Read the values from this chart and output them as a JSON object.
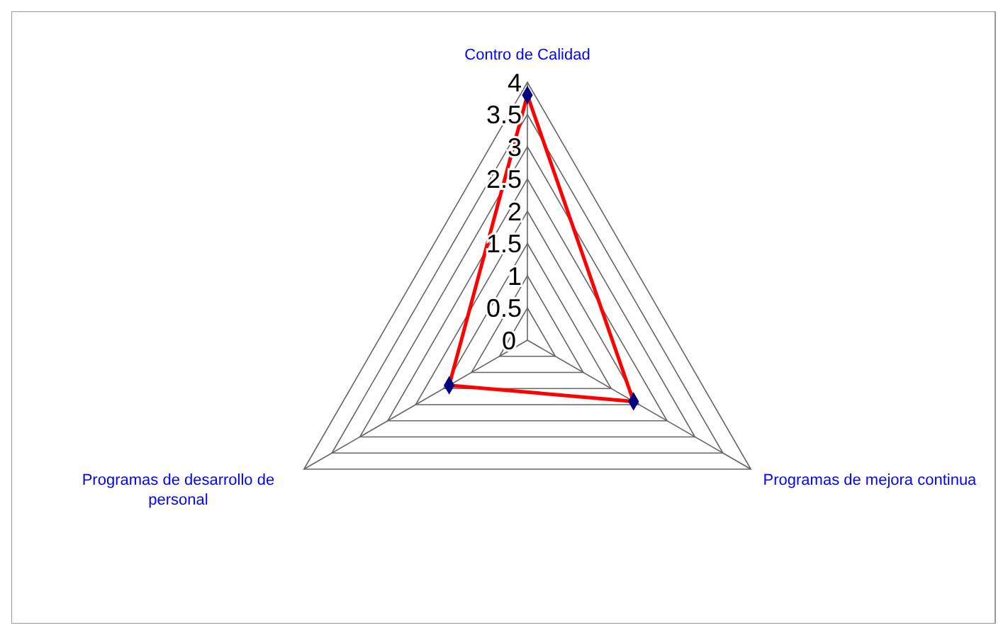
{
  "chart_data": {
    "type": "radar",
    "categories": [
      "Contro de Calidad",
      "Programas de mejora continua",
      "Programas de desarrollo de personal"
    ],
    "series": [
      {
        "color": "#ff0000",
        "values": [
          3.8,
          1.9,
          1.4
        ]
      }
    ],
    "ylim": [
      0,
      4
    ],
    "yticks": [
      0,
      0.5,
      1,
      1.5,
      2,
      2.5,
      3,
      3.5,
      4
    ],
    "marker": "diamond",
    "grid": true
  }
}
